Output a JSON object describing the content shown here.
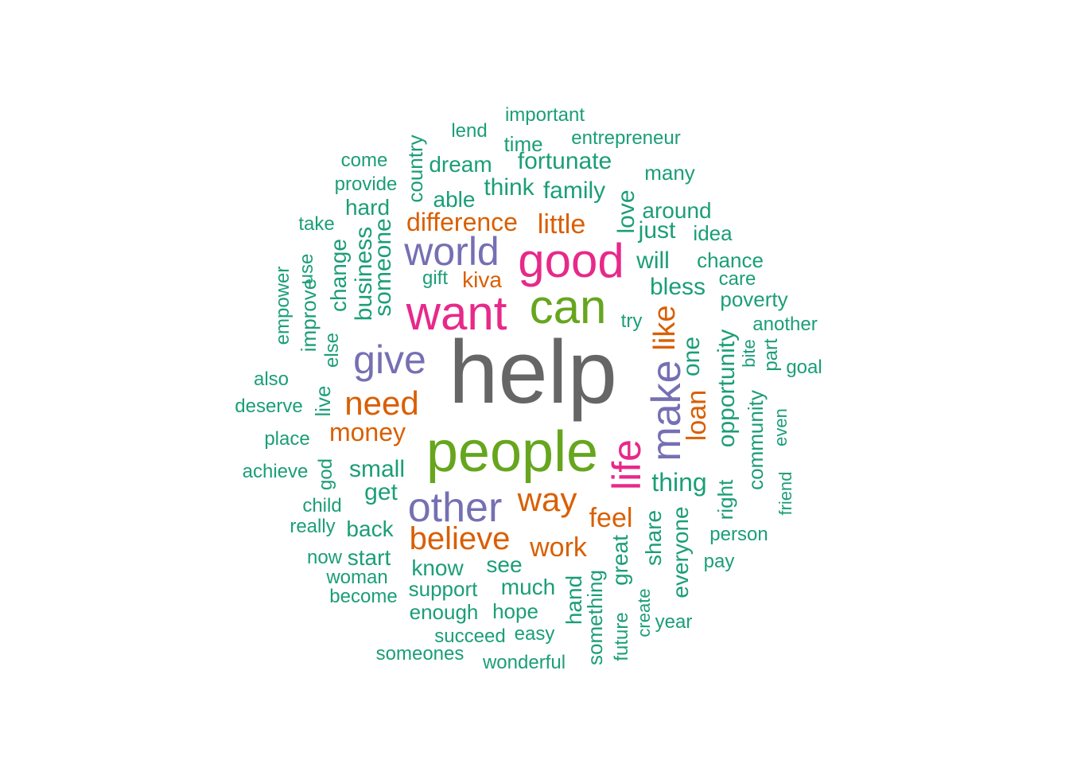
{
  "palette": {
    "c1": "#1b9e77",
    "c2": "#d95f02",
    "c3": "#7570b3",
    "c4": "#e7298a",
    "c5": "#66a61e",
    "c6": "#666666"
  },
  "words": [
    {
      "text": "help",
      "freq": 9
    },
    {
      "text": "people",
      "freq": 6
    },
    {
      "text": "good",
      "freq": 5
    },
    {
      "text": "want",
      "freq": 5
    },
    {
      "text": "can",
      "freq": 5
    },
    {
      "text": "make",
      "freq": 4
    },
    {
      "text": "life",
      "freq": 4
    },
    {
      "text": "other",
      "freq": 4
    },
    {
      "text": "world",
      "freq": 4
    },
    {
      "text": "give",
      "freq": 4
    },
    {
      "text": "need",
      "freq": 3
    },
    {
      "text": "believe",
      "freq": 3
    },
    {
      "text": "way",
      "freq": 3
    },
    {
      "text": "like",
      "freq": 3
    },
    {
      "text": "loan",
      "freq": 3
    },
    {
      "text": "money",
      "freq": 3
    },
    {
      "text": "feel",
      "freq": 3
    },
    {
      "text": "work",
      "freq": 3
    },
    {
      "text": "difference",
      "freq": 3
    },
    {
      "text": "little",
      "freq": 3
    },
    {
      "text": "kiva",
      "freq": 3
    },
    {
      "text": "important",
      "freq": 2
    },
    {
      "text": "lend",
      "freq": 2
    },
    {
      "text": "time",
      "freq": 2
    },
    {
      "text": "entrepreneur",
      "freq": 2
    },
    {
      "text": "come",
      "freq": 2
    },
    {
      "text": "country",
      "freq": 2
    },
    {
      "text": "dream",
      "freq": 2
    },
    {
      "text": "fortunate",
      "freq": 2
    },
    {
      "text": "many",
      "freq": 2
    },
    {
      "text": "provide",
      "freq": 2
    },
    {
      "text": "think",
      "freq": 2
    },
    {
      "text": "family",
      "freq": 2
    },
    {
      "text": "able",
      "freq": 2
    },
    {
      "text": "hard",
      "freq": 2
    },
    {
      "text": "love",
      "freq": 2
    },
    {
      "text": "around",
      "freq": 2
    },
    {
      "text": "take",
      "freq": 2
    },
    {
      "text": "just",
      "freq": 2
    },
    {
      "text": "idea",
      "freq": 2
    },
    {
      "text": "someone",
      "freq": 2
    },
    {
      "text": "change",
      "freq": 2
    },
    {
      "text": "business",
      "freq": 2
    },
    {
      "text": "will",
      "freq": 2
    },
    {
      "text": "chance",
      "freq": 2
    },
    {
      "text": "use",
      "freq": 2
    },
    {
      "text": "gift",
      "freq": 2
    },
    {
      "text": "care",
      "freq": 2
    },
    {
      "text": "bless",
      "freq": 2
    },
    {
      "text": "empower",
      "freq": 2
    },
    {
      "text": "improve",
      "freq": 2
    },
    {
      "text": "poverty",
      "freq": 2
    },
    {
      "text": "try",
      "freq": 2
    },
    {
      "text": "another",
      "freq": 2
    },
    {
      "text": "else",
      "freq": 2
    },
    {
      "text": "opportunity",
      "freq": 2
    },
    {
      "text": "one",
      "freq": 2
    },
    {
      "text": "bite",
      "freq": 2
    },
    {
      "text": "part",
      "freq": 2
    },
    {
      "text": "goal",
      "freq": 2
    },
    {
      "text": "also",
      "freq": 2
    },
    {
      "text": "community",
      "freq": 2
    },
    {
      "text": "live",
      "freq": 2
    },
    {
      "text": "deserve",
      "freq": 2
    },
    {
      "text": "even",
      "freq": 2
    },
    {
      "text": "place",
      "freq": 2
    },
    {
      "text": "small",
      "freq": 2
    },
    {
      "text": "achieve",
      "freq": 2
    },
    {
      "text": "god",
      "freq": 2
    },
    {
      "text": "thing",
      "freq": 2
    },
    {
      "text": "friend",
      "freq": 2
    },
    {
      "text": "get",
      "freq": 2
    },
    {
      "text": "right",
      "freq": 2
    },
    {
      "text": "child",
      "freq": 2
    },
    {
      "text": "really",
      "freq": 2
    },
    {
      "text": "back",
      "freq": 2
    },
    {
      "text": "share",
      "freq": 2
    },
    {
      "text": "everyone",
      "freq": 2
    },
    {
      "text": "person",
      "freq": 2
    },
    {
      "text": "now",
      "freq": 2
    },
    {
      "text": "start",
      "freq": 2
    },
    {
      "text": "great",
      "freq": 2
    },
    {
      "text": "pay",
      "freq": 2
    },
    {
      "text": "know",
      "freq": 2
    },
    {
      "text": "see",
      "freq": 2
    },
    {
      "text": "woman",
      "freq": 2
    },
    {
      "text": "hand",
      "freq": 2
    },
    {
      "text": "much",
      "freq": 2
    },
    {
      "text": "become",
      "freq": 2
    },
    {
      "text": "support",
      "freq": 2
    },
    {
      "text": "something",
      "freq": 2
    },
    {
      "text": "create",
      "freq": 2
    },
    {
      "text": "enough",
      "freq": 2
    },
    {
      "text": "hope",
      "freq": 2
    },
    {
      "text": "year",
      "freq": 2
    },
    {
      "text": "future",
      "freq": 2
    },
    {
      "text": "succeed",
      "freq": 2
    },
    {
      "text": "easy",
      "freq": 2
    },
    {
      "text": "someones",
      "freq": 2
    },
    {
      "text": "wonderful",
      "freq": 2
    }
  ]
}
